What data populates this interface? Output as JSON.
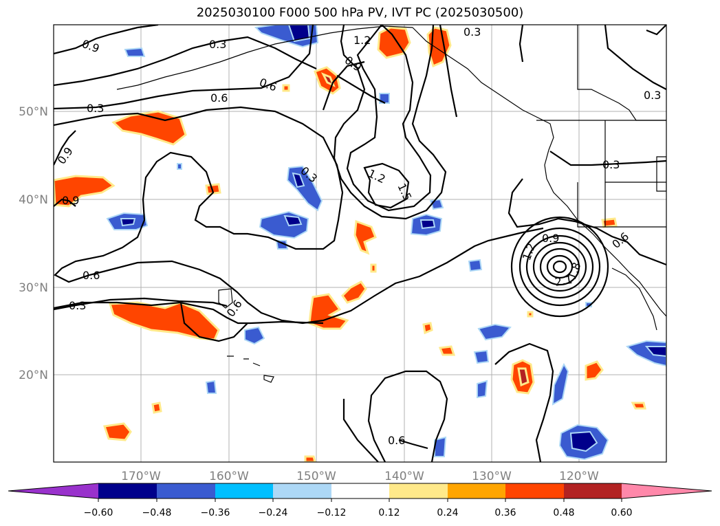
{
  "title": "2025030100 F000 500 hPa PV, IVT PC (2025030500)",
  "lon_labels": [
    "170°W",
    "160°W",
    "150°W",
    "140°W",
    "130°W",
    "120°W"
  ],
  "lat_labels": [
    "50°N",
    "40°N",
    "30°N",
    "20°N"
  ],
  "contour_labels": [
    "0.9",
    "0.3",
    "1.2",
    "0.3",
    "0.9",
    "0.6",
    "0.6",
    "0.3",
    "0.3",
    "0.9",
    "0.3",
    "1.2",
    "1.5",
    "0.9",
    "0.9",
    "0.6",
    "0.6",
    "0.6",
    "0.3",
    "1.2",
    "1.8",
    "2.1",
    "0.3",
    "0.6"
  ],
  "colorbar": {
    "tick_labels": [
      "−0.60",
      "−0.48",
      "−0.36",
      "−0.24",
      "−0.12",
      "0.12",
      "0.24",
      "0.36",
      "0.48",
      "0.60"
    ],
    "colors": [
      "#9932cc",
      "#00008b",
      "#3a5bd0",
      "#00bfff",
      "#add8f6",
      "#ffffff",
      "#ffe98a",
      "#ffa500",
      "#ff4500",
      "#b22222",
      "#ff88aa"
    ]
  }
}
